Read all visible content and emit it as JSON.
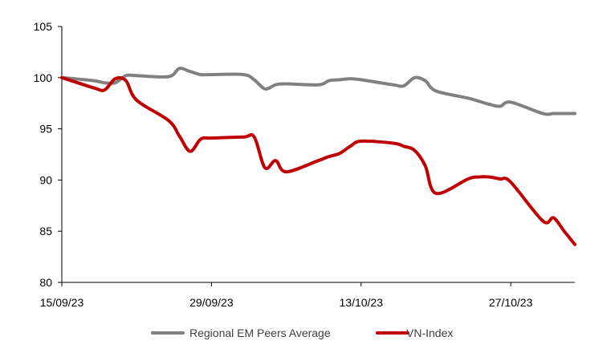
{
  "chart_data": {
    "type": "line",
    "title": "",
    "xlabel": "",
    "ylabel": "",
    "ylim": [
      80,
      105
    ],
    "y_ticks": [
      80,
      85,
      90,
      95,
      100,
      105
    ],
    "x_range": [
      "2023-09-15",
      "2023-11-02"
    ],
    "x_ticks": [
      {
        "date": "2023-09-15",
        "label": "15/09/23"
      },
      {
        "date": "2023-09-29",
        "label": "29/09/23"
      },
      {
        "date": "2023-10-13",
        "label": "13/10/23"
      },
      {
        "date": "2023-10-27",
        "label": "27/10/23"
      }
    ],
    "grid": false,
    "legend_position": "bottom",
    "series": [
      {
        "name": "Regional EM Peers Average",
        "color": "#808080",
        "points": [
          [
            "2023-09-15",
            100.0
          ],
          [
            "2023-09-18",
            99.7
          ],
          [
            "2023-09-19",
            99.5
          ],
          [
            "2023-09-20",
            99.5
          ],
          [
            "2023-09-21",
            100.2
          ],
          [
            "2023-09-22",
            100.2
          ],
          [
            "2023-09-25",
            100.1
          ],
          [
            "2023-09-26",
            100.9
          ],
          [
            "2023-09-27",
            100.6
          ],
          [
            "2023-09-28",
            100.3
          ],
          [
            "2023-09-29",
            100.3
          ],
          [
            "2023-10-02",
            100.3
          ],
          [
            "2023-10-03",
            99.8
          ],
          [
            "2023-10-04",
            98.9
          ],
          [
            "2023-10-05",
            99.3
          ],
          [
            "2023-10-06",
            99.4
          ],
          [
            "2023-10-09",
            99.3
          ],
          [
            "2023-10-10",
            99.7
          ],
          [
            "2023-10-11",
            99.8
          ],
          [
            "2023-10-12",
            99.9
          ],
          [
            "2023-10-13",
            99.8
          ],
          [
            "2023-10-16",
            99.3
          ],
          [
            "2023-10-17",
            99.2
          ],
          [
            "2023-10-18",
            100.0
          ],
          [
            "2023-10-19",
            99.7
          ],
          [
            "2023-10-20",
            98.7
          ],
          [
            "2023-10-23",
            98.0
          ],
          [
            "2023-10-24",
            97.7
          ],
          [
            "2023-10-25",
            97.4
          ],
          [
            "2023-10-26",
            97.2
          ],
          [
            "2023-10-27",
            97.6
          ],
          [
            "2023-10-30",
            96.5
          ],
          [
            "2023-10-31",
            96.5
          ],
          [
            "2023-11-01",
            96.5
          ],
          [
            "2023-11-02",
            96.5
          ]
        ]
      },
      {
        "name": "VN-Index",
        "color": "#c00000",
        "points": [
          [
            "2023-09-15",
            100.0
          ],
          [
            "2023-09-18",
            99.0
          ],
          [
            "2023-09-19",
            98.8
          ],
          [
            "2023-09-20",
            99.9
          ],
          [
            "2023-09-21",
            99.7
          ],
          [
            "2023-09-22",
            97.8
          ],
          [
            "2023-09-25",
            95.8
          ],
          [
            "2023-09-26",
            94.3
          ],
          [
            "2023-09-27",
            92.8
          ],
          [
            "2023-09-28",
            94.0
          ],
          [
            "2023-09-29",
            94.1
          ],
          [
            "2023-10-02",
            94.2
          ],
          [
            "2023-10-03",
            94.2
          ],
          [
            "2023-10-04",
            91.2
          ],
          [
            "2023-10-05",
            91.9
          ],
          [
            "2023-10-06",
            90.8
          ],
          [
            "2023-10-09",
            91.9
          ],
          [
            "2023-10-10",
            92.3
          ],
          [
            "2023-10-11",
            92.6
          ],
          [
            "2023-10-12",
            93.3
          ],
          [
            "2023-10-13",
            93.8
          ],
          [
            "2023-10-16",
            93.6
          ],
          [
            "2023-10-17",
            93.3
          ],
          [
            "2023-10-18",
            92.9
          ],
          [
            "2023-10-19",
            91.4
          ],
          [
            "2023-10-20",
            88.7
          ],
          [
            "2023-10-23",
            90.1
          ],
          [
            "2023-10-24",
            90.3
          ],
          [
            "2023-10-25",
            90.3
          ],
          [
            "2023-10-26",
            90.1
          ],
          [
            "2023-10-27",
            89.8
          ],
          [
            "2023-10-30",
            86.0
          ],
          [
            "2023-10-31",
            86.3
          ],
          [
            "2023-11-01",
            85.0
          ],
          [
            "2023-11-02",
            83.7
          ]
        ]
      }
    ]
  }
}
